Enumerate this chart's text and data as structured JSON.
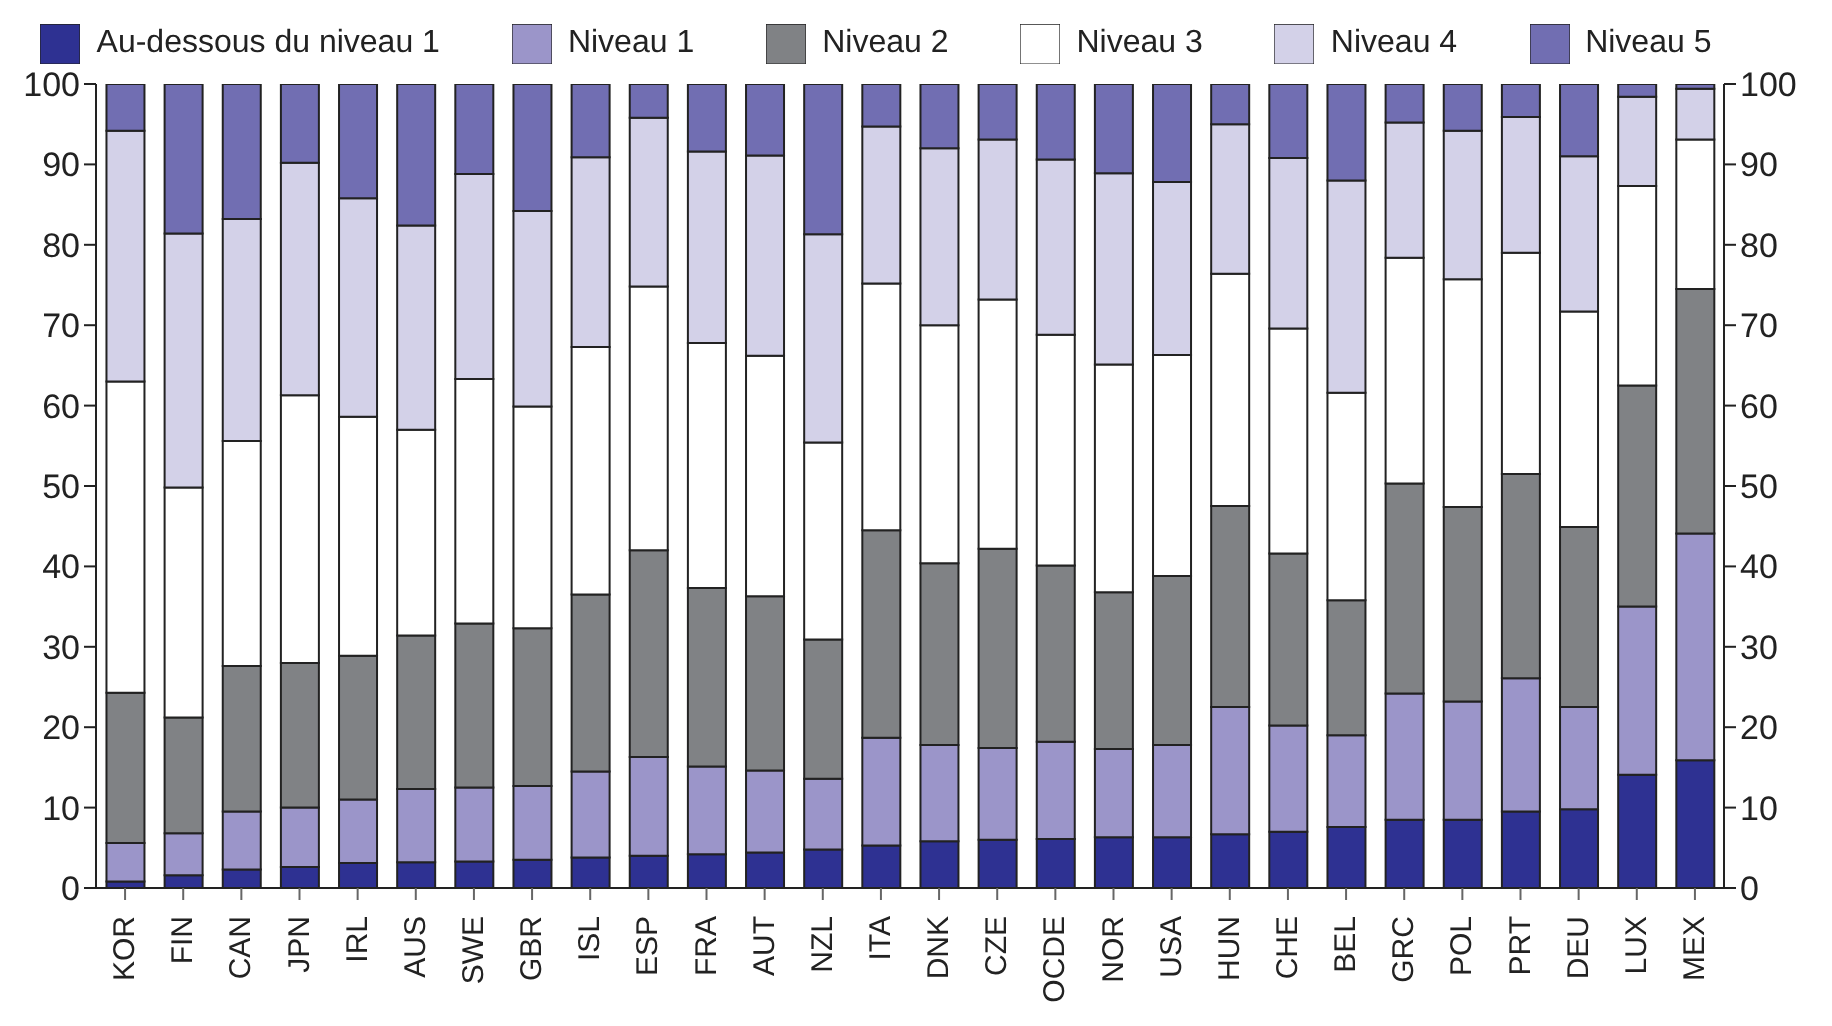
{
  "chart_data": {
    "type": "bar",
    "stacked": true,
    "legend": "top",
    "grid": false,
    "categories": [
      "KOR",
      "FIN",
      "CAN",
      "JPN",
      "IRL",
      "AUS",
      "SWE",
      "GBR",
      "ISL",
      "ESP",
      "FRA",
      "AUT",
      "NZL",
      "ITA",
      "DNK",
      "CZE",
      "OCDE",
      "NOR",
      "USA",
      "HUN",
      "CHE",
      "BEL",
      "GRC",
      "POL",
      "PRT",
      "DEU",
      "LUX",
      "MEX"
    ],
    "ylim": [
      0,
      100
    ],
    "yticks": [
      0,
      10,
      20,
      30,
      40,
      50,
      60,
      70,
      80,
      90,
      100
    ],
    "y2lim": [
      0,
      100
    ],
    "y2ticks": [
      0,
      10,
      20,
      30,
      40,
      50,
      60,
      70,
      80,
      90,
      100
    ],
    "series": [
      {
        "name": "Au-dessous du niveau 1",
        "color": "#2e3192",
        "values": [
          0.8,
          1.6,
          2.3,
          2.6,
          3.1,
          3.2,
          3.3,
          3.5,
          3.8,
          4.0,
          4.2,
          4.4,
          4.8,
          5.3,
          5.8,
          6.0,
          6.1,
          6.3,
          6.3,
          6.7,
          7.0,
          7.6,
          8.5,
          8.5,
          9.5,
          9.8,
          14.1,
          15.9
        ]
      },
      {
        "name": "Niveau 1",
        "color": "#9b95c9",
        "values": [
          4.8,
          5.2,
          7.2,
          7.4,
          7.9,
          9.1,
          9.2,
          9.2,
          10.7,
          12.3,
          10.9,
          10.2,
          8.8,
          13.4,
          12.0,
          11.4,
          12.1,
          11.0,
          11.5,
          15.8,
          13.2,
          11.4,
          15.7,
          14.7,
          16.6,
          12.7,
          20.9,
          28.2
        ]
      },
      {
        "name": "Niveau 2",
        "color": "#808285",
        "values": [
          18.7,
          14.4,
          18.1,
          18.0,
          17.9,
          19.1,
          20.4,
          19.6,
          22.0,
          25.7,
          22.2,
          21.7,
          17.3,
          25.8,
          22.6,
          24.8,
          21.9,
          19.5,
          21.0,
          25.0,
          21.4,
          16.8,
          26.1,
          24.2,
          25.4,
          22.4,
          27.5,
          30.4
        ]
      },
      {
        "name": "Niveau 3",
        "color": "#ffffff",
        "values": [
          38.7,
          28.6,
          28.0,
          33.3,
          29.7,
          25.6,
          30.4,
          27.6,
          30.8,
          32.8,
          30.5,
          29.9,
          24.5,
          30.7,
          29.6,
          31.0,
          28.7,
          28.3,
          27.5,
          28.9,
          28.0,
          25.8,
          28.1,
          28.3,
          27.5,
          26.8,
          24.8,
          18.6
        ]
      },
      {
        "name": "Niveau 4",
        "color": "#d3d1e8",
        "values": [
          31.2,
          31.6,
          27.6,
          28.9,
          27.2,
          25.4,
          25.5,
          24.3,
          23.6,
          21.0,
          23.8,
          24.9,
          25.9,
          19.5,
          22.0,
          19.9,
          21.8,
          23.8,
          21.5,
          18.6,
          21.2,
          26.4,
          16.8,
          18.5,
          16.9,
          19.3,
          11.1,
          6.3
        ]
      },
      {
        "name": "Niveau 5",
        "color": "#716eb2",
        "values": [
          5.8,
          18.6,
          16.8,
          9.8,
          14.2,
          17.6,
          11.2,
          15.8,
          9.1,
          4.2,
          8.4,
          8.9,
          18.7,
          5.3,
          8.0,
          6.9,
          9.4,
          11.1,
          12.2,
          5.0,
          9.2,
          12.0,
          4.8,
          5.8,
          4.1,
          9.0,
          1.6,
          0.6
        ]
      }
    ]
  }
}
